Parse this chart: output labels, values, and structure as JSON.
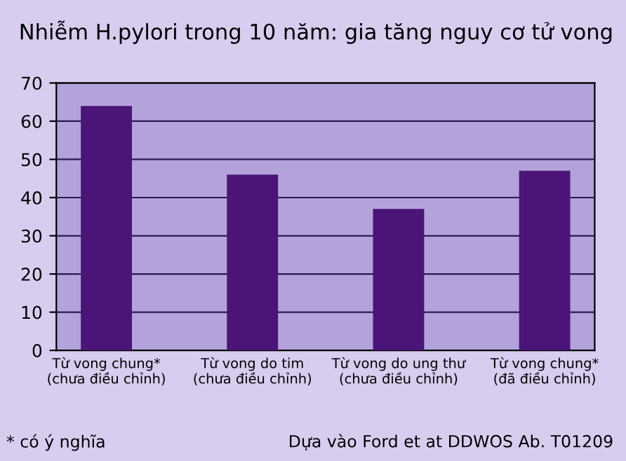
{
  "chart_data": {
    "type": "bar",
    "title": "Nhiễm H.pylori trong 10 năm: gia tăng nguy cơ tử vong",
    "categories": [
      "Từ vong chung*\n(chưa điều chỉnh)",
      "Từ vong do tim\n(chưa điều chỉnh)",
      "Từ vong do ung thư\n(chưa điều chỉnh)",
      "Từ vong chung*\n(đã điều chỉnh)"
    ],
    "values": [
      64,
      46,
      37,
      47
    ],
    "color": "#4a1478",
    "ylim": [
      0,
      70
    ],
    "yticks": [
      0,
      10,
      20,
      30,
      40,
      50,
      60,
      70
    ],
    "grid": "y",
    "annotations": [
      "* có ý nghĩa",
      "Dựa vào Ford et at DDWOS Ab. T01209"
    ]
  }
}
